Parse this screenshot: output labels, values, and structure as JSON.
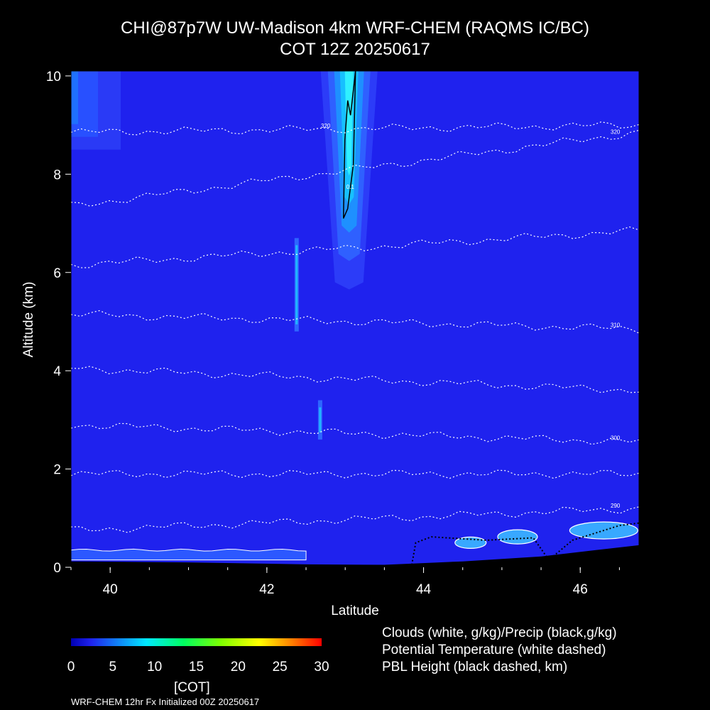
{
  "title_line1": "CHI@87p7W UW-Madison 4km WRF-CHEM (RAQMS IC/BC)",
  "title_line2": "COT 12Z 20250617",
  "chart_data": {
    "type": "heatmap",
    "xlabel": "Latitude",
    "ylabel": "Altitude (km)",
    "xlim": [
      39.5,
      46.75
    ],
    "ylim": [
      0,
      10.1
    ],
    "x_ticks": [
      40,
      42,
      44,
      46
    ],
    "y_ticks": [
      0,
      2,
      4,
      6,
      8,
      10
    ],
    "background_value": 2,
    "plumes": [
      {
        "lat": 43.05,
        "alt_min": 5.8,
        "alt_max": 10.1,
        "peak": 9,
        "label": "0.1"
      },
      {
        "lat": 39.7,
        "alt_min": 8.5,
        "alt_max": 10.1,
        "peak": 4
      },
      {
        "lat": 42.38,
        "alt_min": 4.8,
        "alt_max": 6.7,
        "peak": 4
      },
      {
        "lat": 42.68,
        "alt_min": 2.6,
        "alt_max": 3.4,
        "peak": 4
      }
    ],
    "theta_contours": [
      {
        "label": "320",
        "alt_start": 8.85,
        "alt_end": 9.0
      },
      {
        "label": "320",
        "alt_start": 7.35,
        "alt_end": 8.85
      },
      {
        "label": "",
        "alt_start": 6.15,
        "alt_end": 6.85
      },
      {
        "label": "310",
        "alt_start": 5.15,
        "alt_end": 4.85
      },
      {
        "label": "",
        "alt_start": 4.05,
        "alt_end": 3.6
      },
      {
        "label": "300",
        "alt_start": 2.9,
        "alt_end": 2.55
      },
      {
        "label": "",
        "alt_start": 1.9,
        "alt_end": 1.9
      },
      {
        "label": "290",
        "alt_start": 0.75,
        "alt_end": 1.2
      }
    ],
    "colorbar": {
      "min": 0,
      "max": 30,
      "tick_labels": [
        "0",
        "5",
        "10",
        "15",
        "20",
        "25",
        "30"
      ],
      "label": "[COT]"
    }
  },
  "legend": {
    "line1": "Clouds (white, g/kg)/Precip (black,g/kg)",
    "line2": "Potential Temperature (white dashed)",
    "line3": "PBL Height (black dashed, km)"
  },
  "footer": "WRF-CHEM 12hr  Fx Initialized 00Z 20250617",
  "colors": {
    "background": "#000000",
    "field_base": "#1f22ee",
    "cloud_contour": "#ffffff",
    "terrain": "#000000"
  }
}
